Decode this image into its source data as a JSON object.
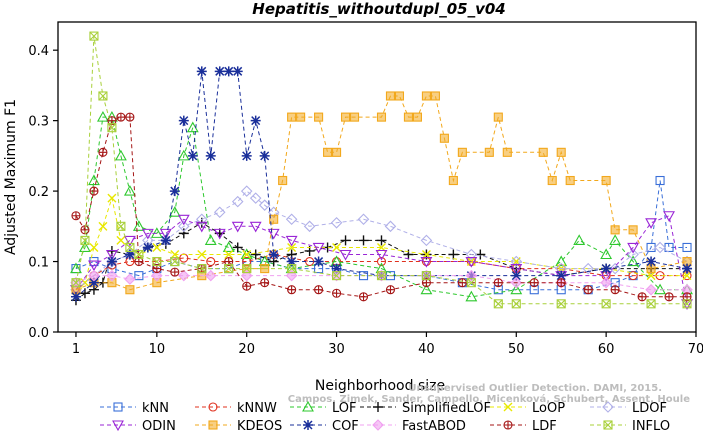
{
  "chart_data": {
    "type": "line",
    "title": "Hepatitis_withoutdupl_05_v04",
    "xlabel": "Neighborhood size",
    "ylabel": "Adjusted Maximum F1",
    "xlim": [
      -1,
      70
    ],
    "ylim": [
      0,
      0.44
    ],
    "xticks": [
      1,
      10,
      20,
      30,
      40,
      50,
      60,
      70
    ],
    "yticks": [
      0.0,
      0.1,
      0.2,
      0.3,
      0.4
    ],
    "grid": false,
    "legend_position": "bottom",
    "watermark": [
      "Campos, Zimek, Sander, Campello, Micenková, Schubert, Assent, Houle",
      "Unsupervised Outlier Detection. DAMI, 2015."
    ],
    "series": [
      {
        "name": "kNN",
        "color": "#3a6fd8",
        "marker": "square",
        "x": [
          1,
          3,
          5,
          8,
          10,
          12,
          15,
          18,
          20,
          22,
          25,
          28,
          30,
          33,
          36,
          40,
          44,
          48,
          52,
          55,
          58,
          61,
          63,
          65,
          66,
          67,
          69
        ],
        "y": [
          0.09,
          0.1,
          0.09,
          0.08,
          0.09,
          0.1,
          0.09,
          0.09,
          0.1,
          0.1,
          0.09,
          0.09,
          0.09,
          0.08,
          0.08,
          0.08,
          0.07,
          0.06,
          0.06,
          0.06,
          0.06,
          0.07,
          0.08,
          0.12,
          0.215,
          0.12,
          0.12
        ]
      },
      {
        "name": "kNNW",
        "color": "#e0301e",
        "marker": "circle",
        "x": [
          1,
          3,
          5,
          7,
          10,
          13,
          16,
          20,
          23,
          27,
          30,
          35,
          40,
          45,
          50,
          55,
          60,
          63,
          66,
          69
        ],
        "y": [
          0.06,
          0.08,
          0.095,
          0.1,
          0.1,
          0.105,
          0.1,
          0.1,
          0.11,
          0.1,
          0.1,
          0.1,
          0.1,
          0.1,
          0.09,
          0.09,
          0.08,
          0.08,
          0.08,
          0.08
        ]
      },
      {
        "name": "LOF",
        "color": "#2ec82e",
        "marker": "triangle-up",
        "x": [
          1,
          2,
          3,
          4,
          5,
          6,
          7,
          8,
          10,
          12,
          13,
          14,
          16,
          18,
          20,
          22,
          25,
          30,
          35,
          40,
          45,
          50,
          55,
          57,
          60,
          61,
          63,
          66,
          69
        ],
        "y": [
          0.09,
          0.12,
          0.215,
          0.305,
          0.305,
          0.25,
          0.2,
          0.15,
          0.14,
          0.17,
          0.25,
          0.29,
          0.13,
          0.12,
          0.11,
          0.1,
          0.09,
          0.1,
          0.09,
          0.06,
          0.05,
          0.06,
          0.1,
          0.13,
          0.11,
          0.13,
          0.1,
          0.06,
          0.06
        ]
      },
      {
        "name": "SimplifiedLOF",
        "color": "#111111",
        "marker": "plus",
        "x": [
          1,
          2,
          3,
          4,
          5,
          7,
          9,
          11,
          13,
          15,
          17,
          19,
          21,
          23,
          25,
          27,
          29,
          31,
          33,
          35,
          38,
          40,
          43,
          46,
          50,
          55,
          60,
          65,
          69
        ],
        "y": [
          0.045,
          0.055,
          0.06,
          0.07,
          0.115,
          0.11,
          0.12,
          0.125,
          0.14,
          0.155,
          0.14,
          0.12,
          0.11,
          0.1,
          0.11,
          0.115,
          0.12,
          0.13,
          0.13,
          0.13,
          0.11,
          0.11,
          0.11,
          0.11,
          0.09,
          0.08,
          0.09,
          0.09,
          0.09
        ]
      },
      {
        "name": "LoOP",
        "color": "#e8e800",
        "marker": "x",
        "x": [
          1,
          2,
          3,
          4,
          5,
          6,
          8,
          10,
          12,
          15,
          18,
          20,
          25,
          30,
          35,
          40,
          45,
          50,
          55,
          60,
          65,
          69
        ],
        "y": [
          0.05,
          0.07,
          0.12,
          0.15,
          0.19,
          0.13,
          0.11,
          0.12,
          0.11,
          0.11,
          0.11,
          0.11,
          0.12,
          0.12,
          0.12,
          0.11,
          0.1,
          0.1,
          0.09,
          0.09,
          0.08,
          0.08
        ]
      },
      {
        "name": "LDOF",
        "color": "#b0b0e8",
        "marker": "diamond",
        "x": [
          1,
          3,
          5,
          7,
          9,
          11,
          13,
          15,
          17,
          19,
          20,
          21,
          22,
          23,
          25,
          27,
          30,
          33,
          36,
          40,
          45,
          50,
          55,
          58,
          61,
          63,
          66,
          69
        ],
        "y": [
          0.06,
          0.08,
          0.1,
          0.11,
          0.13,
          0.13,
          0.15,
          0.16,
          0.17,
          0.185,
          0.2,
          0.19,
          0.18,
          0.17,
          0.16,
          0.15,
          0.155,
          0.16,
          0.15,
          0.13,
          0.11,
          0.1,
          0.09,
          0.09,
          0.09,
          0.11,
          0.12,
          0.1
        ]
      },
      {
        "name": "ODIN",
        "color": "#9a26d6",
        "marker": "triangle-down",
        "x": [
          1,
          3,
          5,
          7,
          9,
          11,
          13,
          15,
          17,
          19,
          21,
          23,
          25,
          28,
          31,
          35,
          40,
          45,
          50,
          55,
          60,
          63,
          65,
          67,
          69
        ],
        "y": [
          0.06,
          0.095,
          0.11,
          0.13,
          0.14,
          0.14,
          0.16,
          0.15,
          0.14,
          0.15,
          0.15,
          0.14,
          0.13,
          0.12,
          0.11,
          0.11,
          0.1,
          0.1,
          0.09,
          0.08,
          0.08,
          0.12,
          0.155,
          0.165,
          0.04
        ]
      },
      {
        "name": "KDEOS",
        "color": "#f2a81c",
        "marker": "square-filled",
        "x": [
          1,
          3,
          5,
          7,
          10,
          15,
          20,
          22,
          23,
          24,
          25,
          26,
          28,
          29,
          30,
          31,
          32,
          35,
          36,
          37,
          38,
          39,
          40,
          41,
          42,
          43,
          44,
          47,
          48,
          49,
          53,
          54,
          55,
          56,
          60,
          61,
          63,
          65,
          69
        ],
        "y": [
          0.06,
          0.07,
          0.07,
          0.06,
          0.07,
          0.08,
          0.09,
          0.09,
          0.16,
          0.215,
          0.305,
          0.305,
          0.305,
          0.255,
          0.255,
          0.305,
          0.305,
          0.305,
          0.335,
          0.335,
          0.305,
          0.305,
          0.335,
          0.335,
          0.275,
          0.215,
          0.255,
          0.255,
          0.305,
          0.255,
          0.255,
          0.215,
          0.255,
          0.215,
          0.215,
          0.145,
          0.145,
          0.09,
          0.1
        ]
      },
      {
        "name": "COF",
        "color": "#1a2f9a",
        "marker": "asterisk",
        "x": [
          1,
          3,
          5,
          7,
          9,
          11,
          12,
          13,
          14,
          15,
          16,
          17,
          18,
          19,
          20,
          21,
          22,
          23,
          25,
          28,
          30,
          35,
          40,
          45,
          50,
          55,
          60,
          65,
          69
        ],
        "y": [
          0.05,
          0.07,
          0.1,
          0.11,
          0.12,
          0.13,
          0.2,
          0.3,
          0.25,
          0.37,
          0.25,
          0.37,
          0.37,
          0.37,
          0.25,
          0.3,
          0.25,
          0.11,
          0.1,
          0.1,
          0.09,
          0.08,
          0.08,
          0.08,
          0.08,
          0.08,
          0.09,
          0.1,
          0.09
        ]
      },
      {
        "name": "FastABOD",
        "color": "#f0a0f0",
        "marker": "diamond-filled",
        "x": [
          1,
          3,
          5,
          7,
          10,
          13,
          16,
          20,
          25,
          30,
          35,
          40,
          45,
          50,
          55,
          60,
          65,
          69
        ],
        "y": [
          0.07,
          0.08,
          0.08,
          0.075,
          0.08,
          0.08,
          0.08,
          0.08,
          0.08,
          0.08,
          0.08,
          0.08,
          0.08,
          0.07,
          0.07,
          0.07,
          0.06,
          0.06
        ]
      },
      {
        "name": "LDF",
        "color": "#a51616",
        "marker": "circle-plus",
        "x": [
          1,
          2,
          3,
          4,
          5,
          6,
          7,
          8,
          10,
          12,
          15,
          18,
          20,
          22,
          25,
          28,
          30,
          33,
          36,
          40,
          44,
          48,
          52,
          55,
          58,
          61,
          64,
          67,
          69
        ],
        "y": [
          0.165,
          0.145,
          0.2,
          0.255,
          0.3,
          0.305,
          0.305,
          0.1,
          0.09,
          0.085,
          0.09,
          0.1,
          0.065,
          0.07,
          0.06,
          0.06,
          0.055,
          0.05,
          0.06,
          0.07,
          0.07,
          0.07,
          0.07,
          0.07,
          0.06,
          0.06,
          0.05,
          0.05,
          0.05
        ]
      },
      {
        "name": "INFLO",
        "color": "#a8d03a",
        "marker": "x-square",
        "x": [
          1,
          2,
          3,
          4,
          5,
          6,
          7,
          8,
          10,
          12,
          15,
          18,
          20,
          25,
          30,
          35,
          40,
          45,
          48,
          50,
          55,
          60,
          65,
          69
        ],
        "y": [
          0.07,
          0.13,
          0.42,
          0.335,
          0.29,
          0.15,
          0.12,
          0.11,
          0.1,
          0.1,
          0.09,
          0.09,
          0.09,
          0.09,
          0.08,
          0.08,
          0.08,
          0.07,
          0.04,
          0.04,
          0.04,
          0.04,
          0.04,
          0.04
        ]
      }
    ]
  }
}
